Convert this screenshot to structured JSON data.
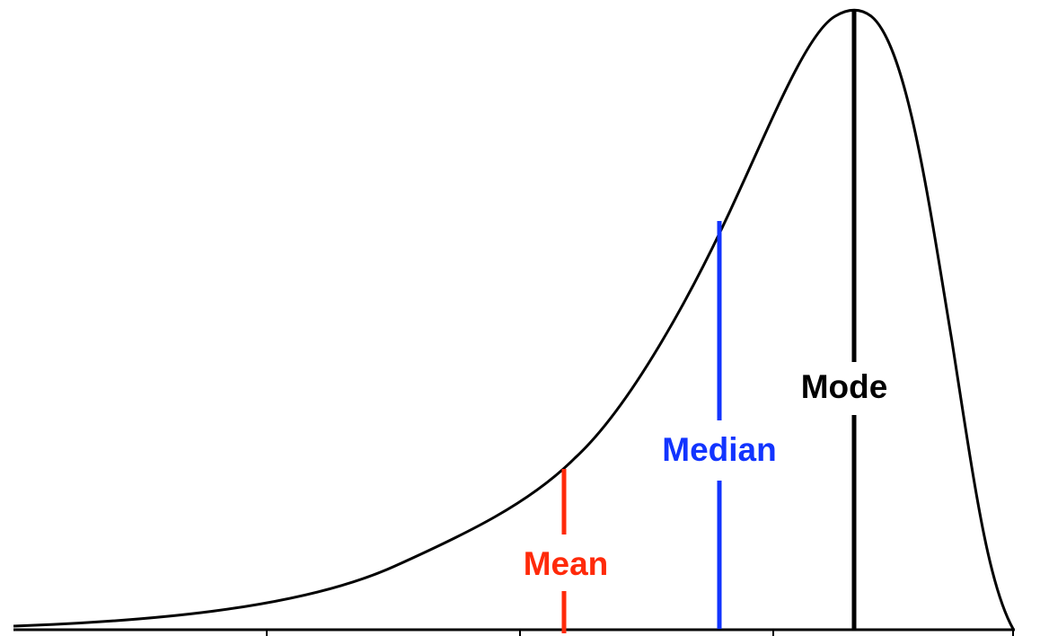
{
  "figure": {
    "distribution": "left-skewed (negatively skewed) unimodal curve",
    "markers": [
      {
        "id": "mean",
        "label": "Mean",
        "color": "#ff2a0a",
        "position": 0.543,
        "height": 0.26
      },
      {
        "id": "median",
        "label": "Median",
        "color": "#1234ff",
        "position": 0.694,
        "height": 0.65
      },
      {
        "id": "mode",
        "label": "Mode",
        "color": "#000000",
        "position": 0.822,
        "height": 1.0
      }
    ],
    "curve_color": "#000000",
    "axis_color": "#000000",
    "axis_ticks": 4
  }
}
